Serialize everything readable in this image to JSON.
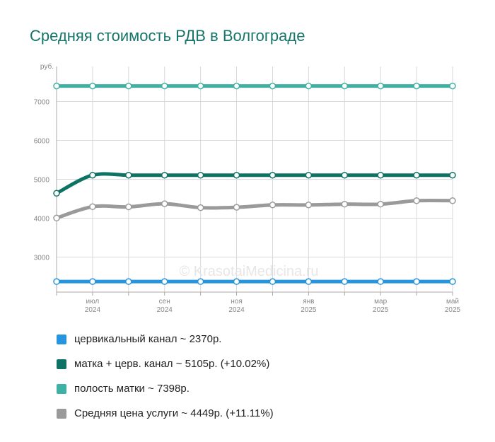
{
  "title": "Средняя стоимость РДВ в Волгограде",
  "watermark": "© KrasotaiMedicina.ru",
  "colors": {
    "grid": "#d9d9d9",
    "axis": "#aaaaaa",
    "title": "#16756a"
  },
  "chart_data": {
    "type": "line",
    "unit_label": "руб.",
    "ylim": [
      2100,
      7900
    ],
    "y_ticks": [
      "3000",
      "4000",
      "5000",
      "6000",
      "7000"
    ],
    "x_tick_labels": [
      {
        "month": "июл",
        "year": "2024"
      },
      {
        "month": "сен",
        "year": "2024"
      },
      {
        "month": "ноя",
        "year": "2024"
      },
      {
        "month": "янв",
        "year": "2025"
      },
      {
        "month": "мар",
        "year": "2025"
      },
      {
        "month": "май",
        "year": "2025"
      }
    ],
    "grid": true,
    "legend_position": "bottom",
    "series": [
      {
        "name": "цервикальный канал ~ 2370р.",
        "color": "#2795dd",
        "values": [
          2370,
          2370,
          2370,
          2370,
          2370,
          2370,
          2370,
          2370,
          2370,
          2370,
          2370,
          2370
        ]
      },
      {
        "name": "матка + церв. канал ~ 5105р. (+10.02%)",
        "color": "#0e7264",
        "values": [
          4640,
          5105,
          5105,
          5105,
          5105,
          5105,
          5105,
          5105,
          5105,
          5105,
          5105,
          5105
        ]
      },
      {
        "name": "полость матки ~ 7398р.",
        "color": "#3eb1a4",
        "values": [
          7398,
          7398,
          7398,
          7398,
          7398,
          7398,
          7398,
          7398,
          7398,
          7398,
          7398,
          7398
        ]
      },
      {
        "name": "Средняя цена услуги ~ 4449р. (+11.11%)",
        "color": "#9a9a9a",
        "values": [
          4004,
          4295,
          4290,
          4370,
          4270,
          4280,
          4340,
          4340,
          4360,
          4360,
          4449,
          4449
        ]
      }
    ]
  }
}
